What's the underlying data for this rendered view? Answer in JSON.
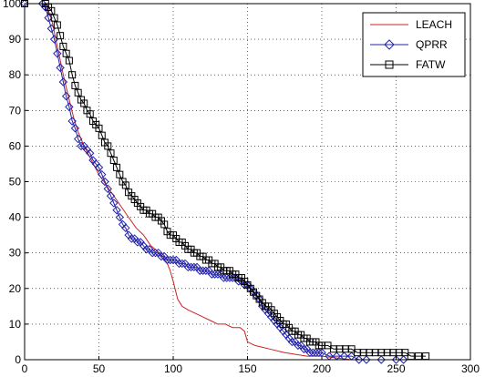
{
  "chart_data": {
    "type": "line",
    "xlim": [
      0,
      300
    ],
    "ylim": [
      0,
      100
    ],
    "xticks": [
      0,
      50,
      100,
      150,
      200,
      250,
      300
    ],
    "yticks": [
      0,
      10,
      20,
      30,
      40,
      50,
      60,
      70,
      80,
      90,
      100
    ],
    "grid": true,
    "grid_style": "dotted",
    "legend_position": "top-right",
    "series": [
      {
        "name": "LEACH",
        "color": "#cc2222",
        "marker": "none",
        "points": [
          [
            0,
            100
          ],
          [
            12,
            100
          ],
          [
            15,
            99
          ],
          [
            18,
            96
          ],
          [
            20,
            92
          ],
          [
            23,
            86
          ],
          [
            26,
            80
          ],
          [
            30,
            73
          ],
          [
            33,
            68
          ],
          [
            36,
            64
          ],
          [
            40,
            60
          ],
          [
            45,
            56
          ],
          [
            50,
            52
          ],
          [
            55,
            49
          ],
          [
            60,
            46
          ],
          [
            65,
            43
          ],
          [
            70,
            40
          ],
          [
            75,
            37
          ],
          [
            80,
            35
          ],
          [
            85,
            32
          ],
          [
            88,
            31
          ],
          [
            90,
            30
          ],
          [
            93,
            29
          ],
          [
            96,
            27
          ],
          [
            98,
            25
          ],
          [
            100,
            22
          ],
          [
            103,
            17
          ],
          [
            106,
            15
          ],
          [
            110,
            14
          ],
          [
            115,
            13
          ],
          [
            120,
            12
          ],
          [
            125,
            11
          ],
          [
            130,
            10
          ],
          [
            135,
            10
          ],
          [
            140,
            9
          ],
          [
            145,
            9
          ],
          [
            148,
            8
          ],
          [
            150,
            5
          ],
          [
            155,
            4
          ],
          [
            165,
            3
          ],
          [
            175,
            2
          ],
          [
            190,
            1
          ],
          [
            200,
            1
          ],
          [
            220,
            0
          ],
          [
            250,
            0
          ]
        ]
      },
      {
        "name": "QPRR",
        "color": "#2222aa",
        "marker": "diamond",
        "points": [
          [
            0,
            100
          ],
          [
            12,
            100
          ],
          [
            14,
            99
          ],
          [
            16,
            96
          ],
          [
            18,
            93
          ],
          [
            20,
            90
          ],
          [
            22,
            86
          ],
          [
            24,
            82
          ],
          [
            26,
            78
          ],
          [
            28,
            74
          ],
          [
            30,
            71
          ],
          [
            32,
            67
          ],
          [
            34,
            65
          ],
          [
            36,
            62
          ],
          [
            38,
            60
          ],
          [
            40,
            60
          ],
          [
            42,
            59
          ],
          [
            44,
            58
          ],
          [
            46,
            56
          ],
          [
            48,
            55
          ],
          [
            50,
            54
          ],
          [
            52,
            52
          ],
          [
            54,
            50
          ],
          [
            56,
            48
          ],
          [
            58,
            46
          ],
          [
            60,
            44
          ],
          [
            62,
            42
          ],
          [
            64,
            40
          ],
          [
            66,
            38
          ],
          [
            68,
            37
          ],
          [
            70,
            35
          ],
          [
            72,
            34
          ],
          [
            74,
            34
          ],
          [
            76,
            33
          ],
          [
            78,
            33
          ],
          [
            80,
            32
          ],
          [
            82,
            31
          ],
          [
            84,
            31
          ],
          [
            86,
            30
          ],
          [
            88,
            30
          ],
          [
            90,
            30
          ],
          [
            92,
            29
          ],
          [
            94,
            29
          ],
          [
            96,
            28
          ],
          [
            98,
            28
          ],
          [
            100,
            28
          ],
          [
            102,
            28
          ],
          [
            104,
            27
          ],
          [
            106,
            27
          ],
          [
            108,
            27
          ],
          [
            110,
            26
          ],
          [
            112,
            26
          ],
          [
            114,
            26
          ],
          [
            116,
            26
          ],
          [
            118,
            25
          ],
          [
            120,
            25
          ],
          [
            122,
            25
          ],
          [
            124,
            25
          ],
          [
            126,
            24
          ],
          [
            128,
            24
          ],
          [
            130,
            24
          ],
          [
            132,
            24
          ],
          [
            134,
            23
          ],
          [
            136,
            23
          ],
          [
            138,
            23
          ],
          [
            140,
            23
          ],
          [
            142,
            23
          ],
          [
            144,
            22
          ],
          [
            146,
            22
          ],
          [
            148,
            21
          ],
          [
            150,
            21
          ],
          [
            152,
            20
          ],
          [
            154,
            19
          ],
          [
            156,
            18
          ],
          [
            158,
            17
          ],
          [
            160,
            15
          ],
          [
            162,
            14
          ],
          [
            164,
            13
          ],
          [
            166,
            12
          ],
          [
            168,
            11
          ],
          [
            170,
            10
          ],
          [
            172,
            9
          ],
          [
            174,
            8
          ],
          [
            176,
            7
          ],
          [
            178,
            6
          ],
          [
            180,
            5
          ],
          [
            182,
            5
          ],
          [
            184,
            4
          ],
          [
            186,
            4
          ],
          [
            188,
            3
          ],
          [
            190,
            3
          ],
          [
            192,
            2
          ],
          [
            194,
            2
          ],
          [
            196,
            2
          ],
          [
            198,
            2
          ],
          [
            200,
            2
          ],
          [
            205,
            1
          ],
          [
            210,
            1
          ],
          [
            215,
            1
          ],
          [
            220,
            1
          ],
          [
            225,
            0
          ],
          [
            230,
            0
          ],
          [
            240,
            0
          ],
          [
            250,
            0
          ],
          [
            255,
            0
          ]
        ]
      },
      {
        "name": "FATW",
        "color": "#000000",
        "marker": "square",
        "points": [
          [
            0,
            100
          ],
          [
            14,
            100
          ],
          [
            16,
            99
          ],
          [
            18,
            98
          ],
          [
            20,
            96
          ],
          [
            22,
            94
          ],
          [
            24,
            91
          ],
          [
            26,
            88
          ],
          [
            28,
            86
          ],
          [
            30,
            84
          ],
          [
            32,
            80
          ],
          [
            34,
            77
          ],
          [
            36,
            75
          ],
          [
            38,
            73
          ],
          [
            40,
            72
          ],
          [
            42,
            70
          ],
          [
            44,
            69
          ],
          [
            46,
            67
          ],
          [
            48,
            66
          ],
          [
            50,
            65
          ],
          [
            52,
            63
          ],
          [
            54,
            61
          ],
          [
            56,
            60
          ],
          [
            58,
            58
          ],
          [
            60,
            56
          ],
          [
            62,
            54
          ],
          [
            64,
            52
          ],
          [
            66,
            50
          ],
          [
            68,
            49
          ],
          [
            70,
            47
          ],
          [
            72,
            46
          ],
          [
            74,
            45
          ],
          [
            76,
            44
          ],
          [
            78,
            43
          ],
          [
            80,
            42
          ],
          [
            82,
            42
          ],
          [
            84,
            41
          ],
          [
            86,
            41
          ],
          [
            88,
            40
          ],
          [
            90,
            40
          ],
          [
            92,
            39
          ],
          [
            94,
            38
          ],
          [
            96,
            36
          ],
          [
            98,
            35
          ],
          [
            100,
            35
          ],
          [
            102,
            34
          ],
          [
            104,
            33
          ],
          [
            106,
            33
          ],
          [
            108,
            32
          ],
          [
            110,
            31
          ],
          [
            112,
            31
          ],
          [
            114,
            30
          ],
          [
            116,
            30
          ],
          [
            118,
            29
          ],
          [
            120,
            29
          ],
          [
            122,
            28
          ],
          [
            124,
            28
          ],
          [
            126,
            27
          ],
          [
            128,
            27
          ],
          [
            130,
            26
          ],
          [
            132,
            26
          ],
          [
            134,
            25
          ],
          [
            136,
            25
          ],
          [
            138,
            25
          ],
          [
            140,
            24
          ],
          [
            142,
            24
          ],
          [
            144,
            23
          ],
          [
            146,
            23
          ],
          [
            148,
            22
          ],
          [
            150,
            21
          ],
          [
            152,
            20
          ],
          [
            154,
            19
          ],
          [
            156,
            18
          ],
          [
            158,
            17
          ],
          [
            160,
            16
          ],
          [
            162,
            15
          ],
          [
            164,
            15
          ],
          [
            166,
            14
          ],
          [
            168,
            13
          ],
          [
            170,
            12
          ],
          [
            172,
            11
          ],
          [
            174,
            10
          ],
          [
            176,
            10
          ],
          [
            178,
            9
          ],
          [
            180,
            8
          ],
          [
            182,
            8
          ],
          [
            184,
            7
          ],
          [
            186,
            7
          ],
          [
            188,
            6
          ],
          [
            190,
            6
          ],
          [
            192,
            5
          ],
          [
            194,
            5
          ],
          [
            196,
            5
          ],
          [
            198,
            4
          ],
          [
            200,
            4
          ],
          [
            204,
            4
          ],
          [
            208,
            3
          ],
          [
            212,
            3
          ],
          [
            216,
            3
          ],
          [
            220,
            3
          ],
          [
            224,
            2
          ],
          [
            228,
            2
          ],
          [
            232,
            2
          ],
          [
            236,
            2
          ],
          [
            240,
            2
          ],
          [
            244,
            2
          ],
          [
            248,
            2
          ],
          [
            252,
            2
          ],
          [
            256,
            2
          ],
          [
            260,
            1
          ],
          [
            265,
            1
          ],
          [
            270,
            1
          ]
        ]
      }
    ]
  }
}
